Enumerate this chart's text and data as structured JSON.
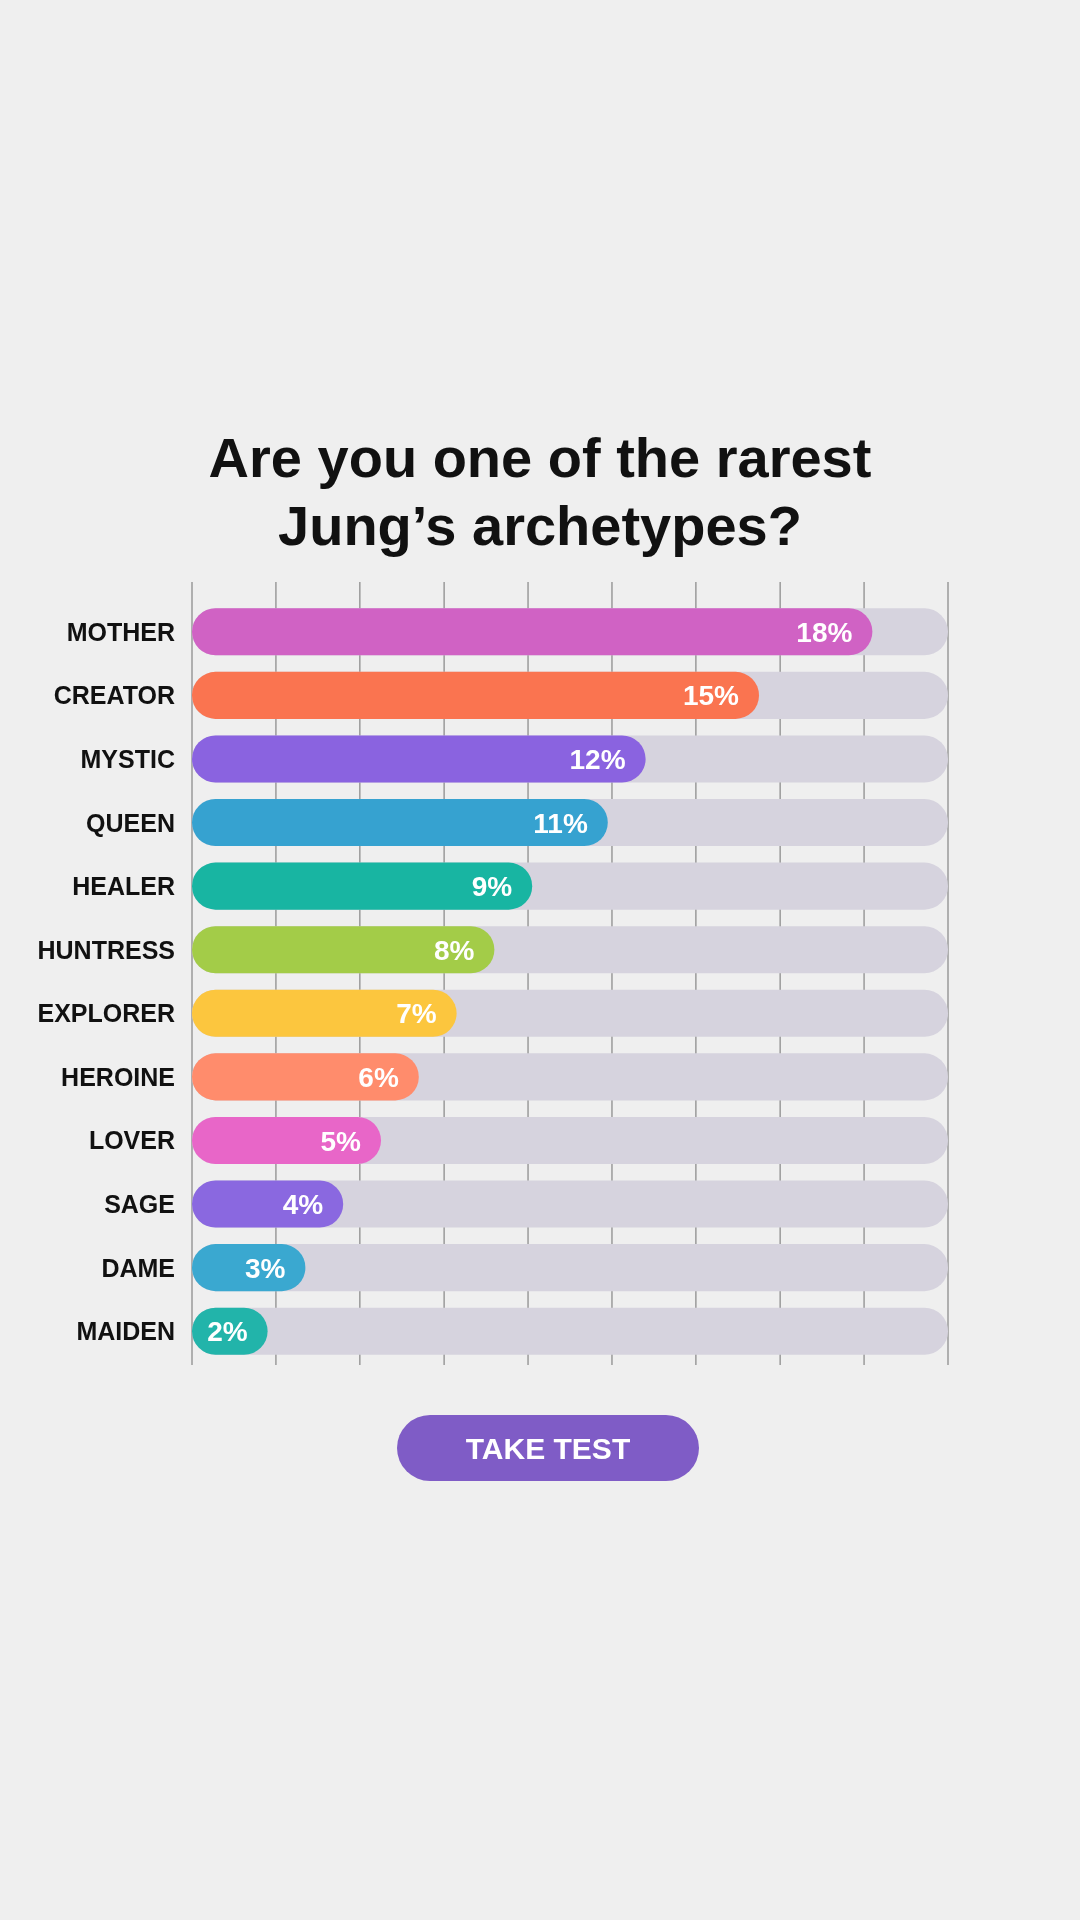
{
  "chart_data": {
    "type": "bar",
    "orientation": "horizontal",
    "title": "Are you one of the rarest Jung’s archetypes?",
    "categories": [
      "MOTHER",
      "CREATOR",
      "MYSTIC",
      "QUEEN",
      "HEALER",
      "HUNTRESS",
      "EXPLORER",
      "HEROINE",
      "LOVER",
      "SAGE",
      "DAME",
      "MAIDEN"
    ],
    "values": [
      18,
      15,
      12,
      11,
      9,
      8,
      7,
      6,
      5,
      4,
      3,
      2
    ],
    "colors": [
      "#d062c4",
      "#fa7450",
      "#8a63e0",
      "#36a2d0",
      "#18b5a2",
      "#a3cc48",
      "#fcc63e",
      "#ff8c6c",
      "#e866c8",
      "#8a68e0",
      "#3aa8d0",
      "#22b4aa"
    ],
    "value_labels": [
      "18%",
      "15%",
      "12%",
      "11%",
      "9%",
      "8%",
      "7%",
      "6%",
      "5%",
      "4%",
      "3%",
      "2%"
    ],
    "xlim": [
      0,
      20
    ],
    "xticks": [
      {
        "value": 0,
        "label": null
      },
      {
        "value": 2.22,
        "label": null
      },
      {
        "value": 4.44,
        "label": null
      },
      {
        "value": 6.67,
        "label": null
      },
      {
        "value": 8.89,
        "label": null
      },
      {
        "value": 11.11,
        "label": null
      },
      {
        "value": 13.33,
        "label": null
      },
      {
        "value": 15.56,
        "label": null
      },
      {
        "value": 17.78,
        "label": null
      },
      {
        "value": 20,
        "label": null
      }
    ],
    "grid": "x",
    "tick_labels": "y",
    "annotations": [
      "TAKE TEST"
    ]
  }
}
